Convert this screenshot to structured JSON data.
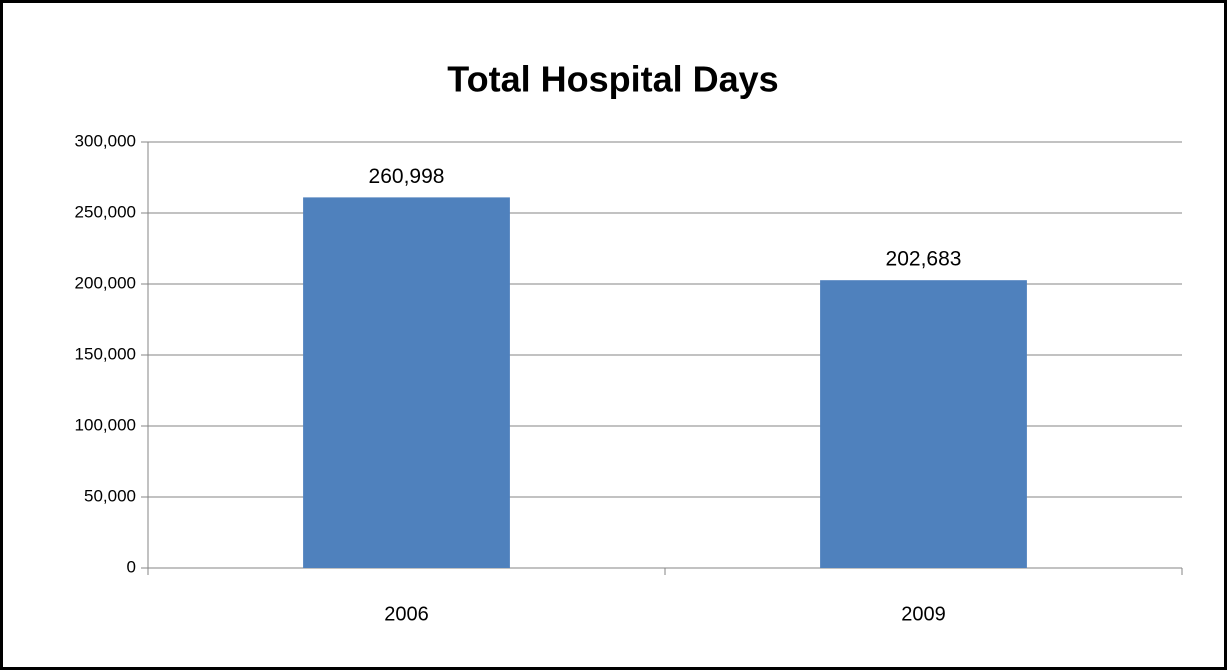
{
  "chart_data": {
    "type": "bar",
    "title": "Total Hospital Days",
    "categories": [
      "2006",
      "2009"
    ],
    "values": [
      260998,
      202683
    ],
    "value_labels": [
      "260,998",
      "202,683"
    ],
    "color": "#4f81bd",
    "ylim": [
      0,
      300000
    ],
    "yticks": [
      0,
      {
        "value": 50000,
        "label": "50,000"
      },
      {
        "value": 100000,
        "label": "100,000"
      },
      {
        "value": 150000,
        "label": "150,000"
      },
      {
        "value": 200000,
        "label": "200,000"
      },
      {
        "value": 250000,
        "label": "250,000"
      },
      {
        "value": 300000,
        "label": "300,000"
      }
    ],
    "grid": true
  }
}
